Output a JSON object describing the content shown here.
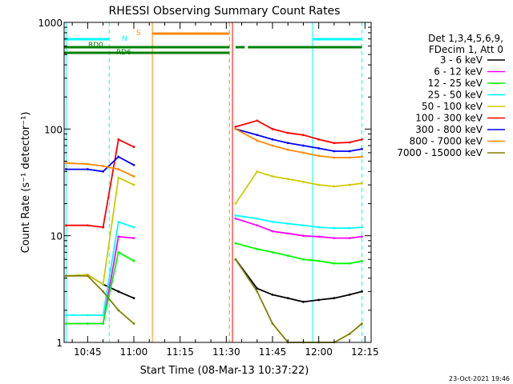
{
  "chart_data": {
    "type": "line",
    "title": "RHESSI Observing Summary Count Rates",
    "xlabel": "Start Time (08-Mar-13 10:37:22)",
    "ylabel": "Count Rate (s⁻¹ detector⁻¹)",
    "y_scale": "log",
    "ylim": [
      1,
      1000
    ],
    "xlim": [
      "10:37:22",
      "12:17"
    ],
    "x_ticks": [
      "10:45",
      "11:00",
      "11:15",
      "11:30",
      "11:45",
      "12:00",
      "12:15"
    ],
    "y_ticks": [
      "1",
      "10",
      "100",
      "1000"
    ],
    "grid": false,
    "legend_position": "right",
    "legend_header": [
      "Det 1,3,4,5,6,9,",
      "FDecim 1, Att 0"
    ],
    "data_gaps": [
      [
        "11:05",
        "11:31"
      ]
    ],
    "series": [
      {
        "name": "3 - 6 keV",
        "color": "#000000",
        "x": [
          "10:38",
          "10:45",
          "10:50",
          "10:55",
          "11:00",
          "11:33",
          "11:40",
          "11:45",
          "11:50",
          "11:55",
          "12:00",
          "12:05",
          "12:10",
          "12:14"
        ],
        "values": [
          4.2,
          4.3,
          3.5,
          3.0,
          2.6,
          6.0,
          3.2,
          2.8,
          2.6,
          2.4,
          2.5,
          2.6,
          2.8,
          3.0
        ]
      },
      {
        "name": "6 - 12 keV",
        "color": "#ff00ff",
        "x": [
          "10:38",
          "10:45",
          "10:50",
          "10:55",
          "11:00",
          "11:33",
          "11:40",
          "11:45",
          "11:50",
          "11:55",
          "12:00",
          "12:05",
          "12:10",
          "12:14"
        ],
        "values": [
          1.5,
          1.5,
          1.5,
          9.8,
          9.5,
          14.5,
          12.5,
          11.0,
          10.5,
          10.0,
          9.8,
          9.5,
          9.5,
          9.8
        ]
      },
      {
        "name": "12 - 25 keV",
        "color": "#00ff00",
        "x": [
          "10:38",
          "10:45",
          "10:50",
          "10:55",
          "11:00",
          "11:33",
          "11:40",
          "11:45",
          "11:50",
          "11:55",
          "12:00",
          "12:05",
          "12:10",
          "12:14"
        ],
        "values": [
          1.5,
          1.5,
          1.5,
          7.0,
          5.8,
          8.5,
          7.5,
          7.0,
          6.5,
          6.0,
          5.8,
          5.5,
          5.5,
          5.8
        ]
      },
      {
        "name": "25 - 50 keV",
        "color": "#00ffff",
        "x": [
          "10:38",
          "10:45",
          "10:50",
          "10:55",
          "11:00",
          "11:33",
          "11:40",
          "11:45",
          "11:50",
          "11:55",
          "12:00",
          "12:05",
          "12:10",
          "12:14"
        ],
        "values": [
          1.8,
          1.8,
          1.8,
          13.5,
          12.0,
          15.5,
          14.5,
          13.5,
          13.0,
          12.5,
          12.0,
          11.8,
          11.8,
          12.0
        ]
      },
      {
        "name": "50 - 100 keV",
        "color": "#cccc00",
        "x": [
          "10:38",
          "10:45",
          "10:50",
          "10:55",
          "11:00",
          "11:33",
          "11:40",
          "11:45",
          "11:50",
          "11:55",
          "12:00",
          "12:05",
          "12:10",
          "12:14"
        ],
        "values": [
          4.2,
          4.3,
          3.5,
          35,
          30,
          20,
          40,
          36,
          34,
          32,
          30,
          29,
          30,
          31
        ]
      },
      {
        "name": "100 - 300 keV",
        "color": "#ff0000",
        "x": [
          "10:38",
          "10:45",
          "10:50",
          "10:55",
          "11:00",
          "11:33",
          "11:40",
          "11:45",
          "11:50",
          "11:55",
          "12:00",
          "12:05",
          "12:10",
          "12:14"
        ],
        "values": [
          12.5,
          12.5,
          12.0,
          80,
          68,
          105,
          120,
          100,
          92,
          88,
          80,
          74,
          75,
          80
        ]
      },
      {
        "name": "300 - 800 keV",
        "color": "#0000ff",
        "x": [
          "10:38",
          "10:45",
          "10:50",
          "10:55",
          "11:00",
          "11:33",
          "11:40",
          "11:45",
          "11:50",
          "11:55",
          "12:00",
          "12:05",
          "12:10",
          "12:14"
        ],
        "values": [
          42,
          42,
          40,
          55,
          46,
          100,
          88,
          80,
          74,
          70,
          66,
          62,
          62,
          65
        ]
      },
      {
        "name": "800 - 7000 keV",
        "color": "#ff8800",
        "x": [
          "10:38",
          "10:45",
          "10:50",
          "10:55",
          "11:00",
          "11:33",
          "11:40",
          "11:45",
          "11:50",
          "11:55",
          "12:00",
          "12:05",
          "12:10",
          "12:14"
        ],
        "values": [
          48,
          47,
          45,
          42,
          36,
          100,
          78,
          70,
          64,
          60,
          56,
          54,
          54,
          55
        ]
      },
      {
        "name": "7000 - 15000 keV",
        "color": "#808000",
        "x": [
          "10:38",
          "10:45",
          "10:50",
          "10:55",
          "11:00",
          "11:33",
          "11:40",
          "11:45",
          "11:50",
          "11:55",
          "12:00",
          "12:05",
          "12:10",
          "12:14"
        ],
        "values": [
          4.2,
          4.2,
          3.0,
          2.0,
          1.5,
          6.0,
          3.0,
          1.5,
          1.0,
          1.0,
          1.0,
          1.0,
          1.2,
          1.5
        ]
      }
    ],
    "flag_bars": [
      {
        "label": "N",
        "color": "#00ffff",
        "segments": [
          [
            "10:37:22",
            "10:52"
          ],
          [
            "11:58",
            "12:14"
          ]
        ]
      },
      {
        "label": "S",
        "color": "#ff8800",
        "segments": [
          [
            "11:06",
            "11:31"
          ]
        ]
      },
      {
        "label": "RD0",
        "color": "#008000",
        "segments": [
          [
            "10:37:22",
            "11:31"
          ],
          [
            "11:33",
            "11:36"
          ],
          [
            "11:37",
            "12:14"
          ]
        ]
      },
      {
        "label": "RD6",
        "color": "#008000",
        "segments": [
          [
            "10:37:22",
            "11:31"
          ]
        ]
      }
    ],
    "vertical_markers": [
      {
        "time": "10:38",
        "color": "#00ffff",
        "style": "solid"
      },
      {
        "time": "10:52",
        "color": "#00ffff",
        "style": "dashed"
      },
      {
        "time": "11:06",
        "color": "#ff8800",
        "style": "solid"
      },
      {
        "time": "11:31",
        "color": "#ff8800",
        "style": "dashed"
      },
      {
        "time": "11:32",
        "color": "#ff0000",
        "style": "solid"
      },
      {
        "time": "11:58",
        "color": "#00ffff",
        "style": "solid"
      },
      {
        "time": "12:14",
        "color": "#00ffff",
        "style": "dashed"
      }
    ],
    "footer_date": "23-Oct-2021 19:46"
  }
}
